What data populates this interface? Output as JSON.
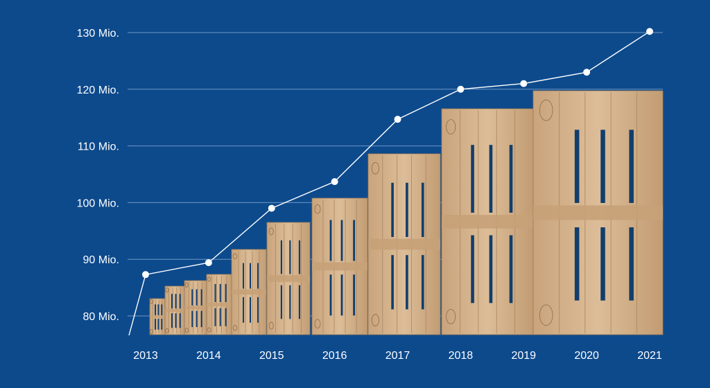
{
  "chart_data": {
    "type": "line",
    "categories": [
      "2013",
      "2014",
      "2015",
      "2016",
      "2017",
      "2018",
      "2019",
      "2020",
      "2021"
    ],
    "y_tick_labels": [
      "80 Mio.",
      "90 Mio.",
      "100 Mio.",
      "110 Mio.",
      "120 Mio.",
      "130 Mio."
    ],
    "y_tick_values": [
      80,
      90,
      100,
      110,
      120,
      130
    ],
    "ylim": [
      75.5,
      132
    ],
    "grid": true,
    "colors": {
      "background": "#0d4a8c",
      "line": "#ffffff",
      "gridline": "#8fb0d6",
      "pallet_wood": "#d2b08a",
      "pallet_dark": "#b08c66"
    },
    "series": [
      {
        "values": [
          87.3,
          89.4,
          99.0,
          103.7,
          114.7,
          120.0,
          121.0,
          123.0,
          130.2
        ]
      }
    ],
    "illustration": "euro-pallet stacks growing per year"
  }
}
